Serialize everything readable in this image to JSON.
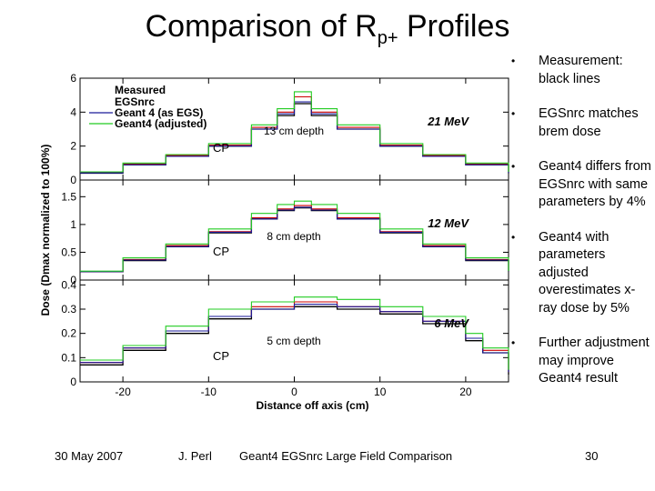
{
  "title": {
    "main": "Comparison of R",
    "sub": "p+",
    "rest": " Profiles"
  },
  "bullets": [
    "Measurement: black lines",
    "EGSnrc matches brem dose",
    "Geant4 differs from EGSnrc with same parameters by 4%",
    "Geant4 with parameters adjusted overestimates x-ray dose by 5%",
    "Further adjustment may improve Geant4 result"
  ],
  "footer": {
    "date": "30 May 2007",
    "author": "J. Perl",
    "conference": "Geant4 EGSnrc Large Field Comparison",
    "page": "30"
  },
  "chart_data": {
    "type": "line",
    "xlabel": "Distance off axis (cm)",
    "ylabel": "Dose (Dmax normalized to 100%)",
    "xlim": [
      -25,
      25
    ],
    "xticks": [
      -20,
      -10,
      0,
      10,
      20
    ],
    "legend": {
      "placement": "top-left",
      "header": "Measured",
      "entries": [
        {
          "name": "EGSnrc",
          "color": "#cc0000"
        },
        {
          "name": "Geant 4 (as EGS)",
          "color": "#1a1a99"
        },
        {
          "name": "Geant4 (adjusted)",
          "color": "#22cc22"
        }
      ]
    },
    "panels": [
      {
        "energy": "21 MeV",
        "depth": "13 cm depth",
        "cp": "CP",
        "ylim": [
          0,
          6
        ],
        "yticks": [
          "0",
          "2",
          "4",
          "6"
        ],
        "x": [
          -25,
          -20,
          -15,
          -10,
          -5,
          -2,
          0,
          2,
          5,
          10,
          15,
          20,
          25
        ],
        "series": [
          {
            "name": "Measured",
            "color": "#000000",
            "values": [
              0.4,
              0.9,
              1.4,
              2.0,
              3.0,
              3.8,
              4.5,
              3.8,
              3.0,
              2.0,
              1.4,
              0.9,
              0.4
            ]
          },
          {
            "name": "EGSnrc",
            "color": "#cc0000",
            "values": [
              0.45,
              0.95,
              1.45,
              2.05,
              3.1,
              4.0,
              4.9,
              4.0,
              3.1,
              2.05,
              1.45,
              0.95,
              0.45
            ]
          },
          {
            "name": "Geant 4 (as EGS)",
            "color": "#1a1a99",
            "values": [
              0.42,
              0.9,
              1.4,
              2.0,
              3.0,
              3.9,
              4.6,
              3.9,
              3.0,
              2.0,
              1.4,
              0.9,
              0.42
            ]
          },
          {
            "name": "Geant4 (adjusted)",
            "color": "#22cc22",
            "values": [
              0.48,
              1.0,
              1.5,
              2.15,
              3.25,
              4.2,
              5.2,
              4.2,
              3.25,
              2.15,
              1.5,
              1.0,
              0.48
            ]
          }
        ]
      },
      {
        "energy": "12 MeV",
        "depth": "8 cm depth",
        "cp": "CP",
        "ylim": [
          0,
          1.8
        ],
        "yticks": [
          "0",
          "0.5",
          "1",
          "1.5"
        ],
        "x": [
          -25,
          -20,
          -15,
          -10,
          -5,
          -2,
          0,
          2,
          5,
          10,
          15,
          20,
          25
        ],
        "series": [
          {
            "name": "Measured",
            "color": "#000000",
            "values": [
              0.15,
              0.35,
              0.6,
              0.85,
              1.1,
              1.25,
              1.3,
              1.25,
              1.1,
              0.85,
              0.6,
              0.35,
              0.15
            ]
          },
          {
            "name": "EGSnrc",
            "color": "#cc0000",
            "values": [
              0.15,
              0.37,
              0.62,
              0.87,
              1.12,
              1.28,
              1.34,
              1.28,
              1.12,
              0.87,
              0.62,
              0.37,
              0.15
            ]
          },
          {
            "name": "Geant 4 (as EGS)",
            "color": "#1a1a99",
            "values": [
              0.15,
              0.36,
              0.6,
              0.86,
              1.1,
              1.26,
              1.31,
              1.26,
              1.1,
              0.86,
              0.6,
              0.36,
              0.15
            ]
          },
          {
            "name": "Geant4 (adjusted)",
            "color": "#22cc22",
            "values": [
              0.16,
              0.4,
              0.65,
              0.92,
              1.2,
              1.36,
              1.42,
              1.36,
              1.2,
              0.92,
              0.65,
              0.4,
              0.16
            ]
          }
        ]
      },
      {
        "energy": "6 MeV",
        "depth": "5 cm depth",
        "cp": "CP",
        "ylim": [
          0,
          0.42
        ],
        "yticks": [
          "0",
          "0.1",
          "0.2",
          "0.3",
          "0.4"
        ],
        "x": [
          -25,
          -20,
          -15,
          -10,
          -5,
          0,
          5,
          10,
          15,
          20,
          22,
          25
        ],
        "series": [
          {
            "name": "Measured",
            "color": "#000000",
            "values": [
              0.07,
              0.13,
              0.2,
              0.26,
              0.3,
              0.31,
              0.3,
              0.28,
              0.24,
              0.17,
              0.12,
              0.03
            ]
          },
          {
            "name": "EGSnrc",
            "color": "#cc0000",
            "values": [
              0.08,
              0.14,
              0.21,
              0.27,
              0.31,
              0.33,
              0.31,
              0.29,
              0.25,
              0.18,
              0.13,
              0.04
            ]
          },
          {
            "name": "Geant 4 (as EGS)",
            "color": "#1a1a99",
            "values": [
              0.08,
              0.14,
              0.21,
              0.27,
              0.3,
              0.32,
              0.31,
              0.29,
              0.25,
              0.18,
              0.12,
              0.04
            ]
          },
          {
            "name": "Geant4 (adjusted)",
            "color": "#22cc22",
            "values": [
              0.09,
              0.15,
              0.23,
              0.3,
              0.33,
              0.35,
              0.34,
              0.31,
              0.27,
              0.2,
              0.14,
              0.05
            ]
          }
        ]
      }
    ]
  }
}
